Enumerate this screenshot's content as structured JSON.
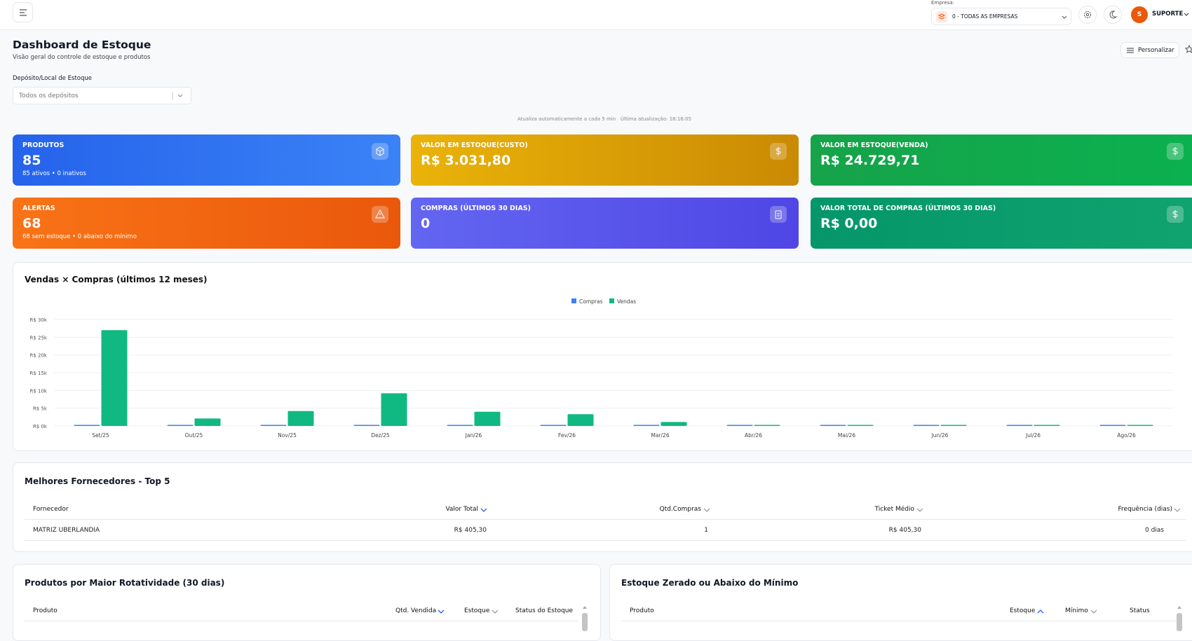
{
  "header": {
    "company_label": "Empresa:",
    "company": "0 - TODAS AS EMPRESAS",
    "avatar": "S",
    "user": "SUPORTE"
  },
  "page": {
    "title": "Dashboard de Estoque",
    "subtitle": "Visão geral do controle de estoque e produtos",
    "customize": "Personalizar"
  },
  "filter": {
    "label": "Depósito/Local de Estoque",
    "placeholder": "Todos os depósitos"
  },
  "update_note": {
    "auto": "Atualiza automaticamente a cada 5 min",
    "last": "Última atualização: 18:16:05"
  },
  "cards": [
    {
      "label": "PRODUTOS",
      "value": "85",
      "detail": "85 ativos • 0 inativos"
    },
    {
      "label": "VALOR EM ESTOQUE(CUSTO)",
      "value": "R$ 3.031,80"
    },
    {
      "label": "VALOR EM ESTOQUE(VENDA)",
      "value": "R$ 24.729,71"
    },
    {
      "label": "ALERTAS",
      "value": "68",
      "detail": "68 sem estoque • 0 abaixo do mínimo"
    },
    {
      "label": "COMPRAS (ÚLTIMOS 30 DIAS)",
      "value": "0"
    },
    {
      "label": "VALOR TOTAL DE COMPRAS (ÚLTIMOS 30 DIAS)",
      "value": "R$ 0,00"
    }
  ],
  "chart_data": {
    "type": "bar",
    "title": "Vendas × Compras (últimos 12 meses)",
    "categories": [
      "Set/25",
      "Out/25",
      "Nov/25",
      "Dez/25",
      "Jan/26",
      "Fev/26",
      "Mar/26",
      "Abr/26",
      "Mai/26",
      "Jun/26",
      "Jul/26",
      "Ago/26"
    ],
    "series": [
      {
        "name": "Compras",
        "color": "#3b82f6",
        "values": [
          0,
          0,
          0,
          0,
          0,
          0,
          0,
          0,
          0,
          0,
          0,
          0
        ]
      },
      {
        "name": "Vendas",
        "color": "#10b981",
        "values": [
          27000,
          2100,
          4200,
          9200,
          4000,
          3300,
          1100,
          200,
          0,
          0,
          0,
          0
        ]
      }
    ],
    "ylim": [
      0,
      30000
    ],
    "yticks": [
      {
        "value": 0,
        "label": "R$ 0k"
      },
      {
        "value": 5000,
        "label": "R$ 5k"
      },
      {
        "value": 10000,
        "label": "R$ 10k"
      },
      {
        "value": 15000,
        "label": "R$ 15k"
      },
      {
        "value": 20000,
        "label": "R$ 20k"
      },
      {
        "value": 25000,
        "label": "R$ 25k"
      },
      {
        "value": 30000,
        "label": "R$ 30k"
      }
    ],
    "grid": true,
    "legend": "top"
  },
  "suppliers": {
    "title": "Melhores Fornecedores - Top 5",
    "columns": [
      "Fornecedor",
      "Valor Total",
      "Qtd.Compras",
      "Ticket Médio",
      "Frequência (dias)"
    ],
    "rows": [
      [
        "MATRIZ UBERLANDIA",
        "R$ 405,30",
        "1",
        "R$ 405,30",
        "0 dias"
      ]
    ]
  },
  "rotation": {
    "title": "Produtos por Maior Rotatividade (30 dias)",
    "columns": [
      "Produto",
      "Qtd. Vendida",
      "Estoque",
      "Status do Estoque"
    ]
  },
  "stockout": {
    "title": "Estoque Zerado ou Abaixo do Mínimo",
    "columns": [
      "Produto",
      "Estoque",
      "Mínimo",
      "Status"
    ]
  }
}
